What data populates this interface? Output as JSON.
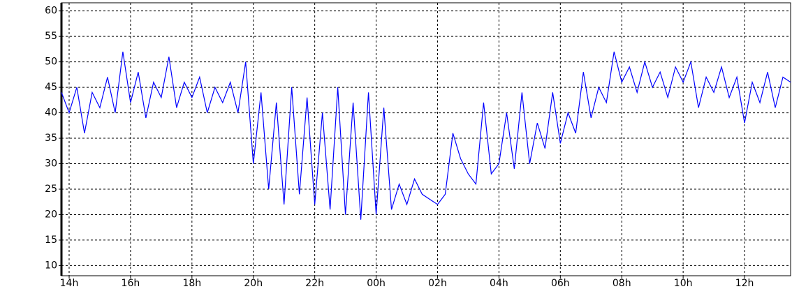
{
  "chart_data": {
    "type": "line",
    "x": [
      13.75,
      14,
      14.25,
      14.5,
      14.75,
      15,
      15.25,
      15.5,
      15.75,
      16,
      16.25,
      16.5,
      16.75,
      17,
      17.25,
      17.5,
      17.75,
      18,
      18.25,
      18.5,
      18.75,
      19,
      19.25,
      19.5,
      19.75,
      20,
      20.25,
      20.5,
      20.75,
      21,
      21.25,
      21.5,
      21.75,
      22,
      22.25,
      22.5,
      22.75,
      23,
      23.25,
      23.5,
      23.75,
      24,
      24.25,
      24.5,
      24.75,
      25,
      25.25,
      25.5,
      25.75,
      26,
      26.25,
      26.5,
      26.75,
      27,
      27.25,
      27.5,
      27.75,
      28,
      28.25,
      28.5,
      28.75,
      29,
      29.25,
      29.5,
      29.75,
      30,
      30.25,
      30.5,
      30.75,
      31,
      31.25,
      31.5,
      31.75,
      32,
      32.25,
      32.5,
      32.75,
      33,
      33.25,
      33.5,
      33.75,
      34,
      34.25,
      34.5,
      34.75,
      35,
      35.25,
      35.5,
      35.75,
      36,
      36.25,
      36.5,
      36.75,
      37,
      37.25,
      37.5
    ],
    "series": [
      {
        "color": "#0000ff",
        "values": [
          44,
          40,
          45,
          36,
          44,
          41,
          47,
          40,
          52,
          42,
          48,
          39,
          46,
          43,
          51,
          41,
          46,
          43,
          47,
          40,
          45,
          42,
          46,
          40,
          50,
          30,
          44,
          25,
          42,
          22,
          45,
          24,
          43,
          22,
          40,
          21,
          45,
          20,
          42,
          19,
          44,
          20,
          41,
          21,
          26,
          22,
          27,
          24,
          23,
          22,
          24,
          36,
          31,
          28,
          26,
          42,
          28,
          30,
          40,
          29,
          44,
          30,
          38,
          33,
          44,
          34,
          40,
          36,
          48,
          39,
          45,
          42,
          52,
          46,
          49,
          44,
          50,
          45,
          48,
          43,
          49,
          46,
          50,
          41,
          47,
          44,
          49,
          43,
          47,
          38,
          46,
          42,
          48,
          41,
          47,
          46
        ]
      }
    ],
    "xlim": [
      13.75,
      37.5
    ],
    "xticks": [
      {
        "value": 14,
        "label": "14h"
      },
      {
        "value": 16,
        "label": "16h"
      },
      {
        "value": 18,
        "label": "18h"
      },
      {
        "value": 20,
        "label": "20h"
      },
      {
        "value": 22,
        "label": "22h"
      },
      {
        "value": 24,
        "label": "00h"
      },
      {
        "value": 26,
        "label": "02h"
      },
      {
        "value": 28,
        "label": "04h"
      },
      {
        "value": 30,
        "label": "06h"
      },
      {
        "value": 32,
        "label": "08h"
      },
      {
        "value": 34,
        "label": "10h"
      },
      {
        "value": 36,
        "label": "12h"
      }
    ],
    "ylim": [
      8,
      61.6
    ],
    "yticks": [
      10,
      15,
      20,
      25,
      30,
      35,
      40,
      45,
      50,
      55,
      60
    ],
    "grid": true
  }
}
